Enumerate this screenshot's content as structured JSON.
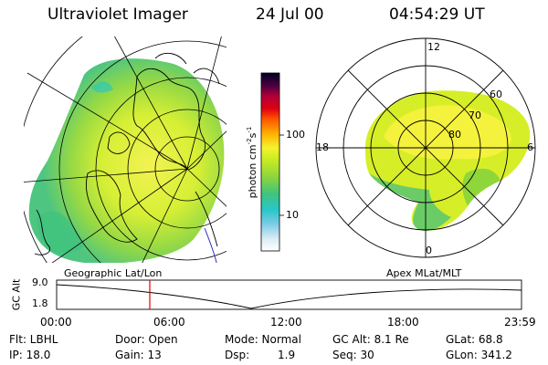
{
  "header": {
    "title": "Ultraviolet Imager",
    "date": "24 Jul 00",
    "time": "04:54:29 UT"
  },
  "colorbar": {
    "label": "photon cm",
    "label_sup1": "-2",
    "label_mid": "s",
    "label_sup2": "-1",
    "ticks": [
      "100",
      "10"
    ]
  },
  "polar_plot": {
    "labels": {
      "top": "12",
      "left": "18",
      "right": "6",
      "bottom": "0",
      "lat60": "60",
      "lat70": "70",
      "lat80": "80"
    }
  },
  "panel_labels": {
    "left": "Geographic Lat/Lon",
    "right": "Apex MLat/MLT"
  },
  "altitude_plot": {
    "ylabel": "GC Alt",
    "yticks": [
      "9.0",
      "1.8"
    ],
    "xticks": [
      "00:00",
      "06:00",
      "12:00",
      "18:00",
      "23:59"
    ]
  },
  "info": {
    "row1": {
      "flt": "Flt: LBHL",
      "door": "Door: Open",
      "mode": "Mode: Normal",
      "gcalt": "GC Alt: 8.1 Re",
      "glat": "GLat:  68.8"
    },
    "row2": {
      "ip": "IP: 18.0",
      "gain": "Gain: 13",
      "dsp_label": "Dsp:",
      "dsp_value": "1.9",
      "seq": "Seq: 30",
      "glon": "GLon: 341.2"
    }
  }
}
